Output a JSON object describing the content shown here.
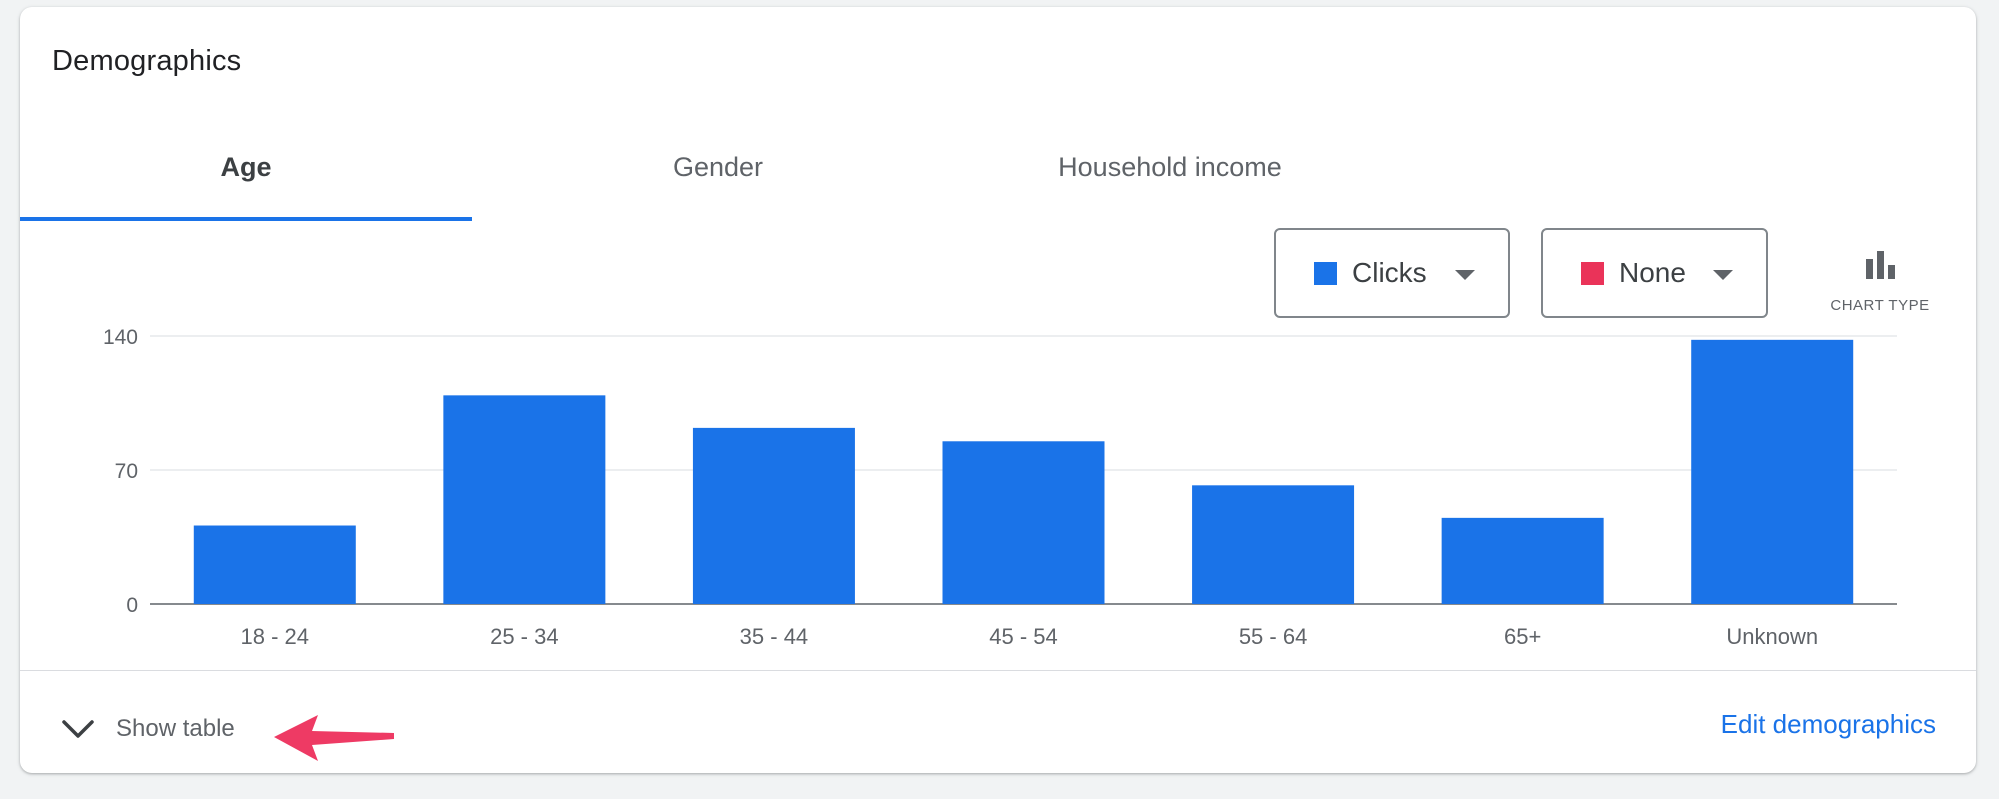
{
  "card": {
    "title": "Demographics"
  },
  "tabs": [
    {
      "label": "Age",
      "active": true
    },
    {
      "label": "Gender",
      "active": false
    },
    {
      "label": "Household income",
      "active": false
    }
  ],
  "metric_selectors": [
    {
      "label": "Clicks",
      "color": "#1a73e8"
    },
    {
      "label": "None",
      "color": "#ea3359"
    }
  ],
  "chart_type": {
    "label": "CHART TYPE",
    "icon": "bar-chart-icon"
  },
  "footer": {
    "show_table_label": "Show table",
    "show_table_icon": "chevron-down-icon",
    "edit_link": "Edit demographics",
    "annotation_icon": "red-arrow-annotation"
  },
  "colors": {
    "accent": "#1a73e8",
    "bar": "#1a73e8",
    "annotation": "#ee3a64"
  },
  "chart_data": {
    "type": "bar",
    "categories": [
      "18 - 24",
      "25 - 34",
      "35 - 44",
      "45 - 54",
      "55 - 64",
      "65+",
      "Unknown"
    ],
    "series": [
      {
        "name": "Clicks",
        "values": [
          41,
          109,
          92,
          85,
          62,
          45,
          138
        ]
      }
    ],
    "y_ticks": [
      0,
      70,
      140
    ],
    "ylim": [
      0,
      140
    ],
    "grid": true,
    "legend": "top-right"
  }
}
